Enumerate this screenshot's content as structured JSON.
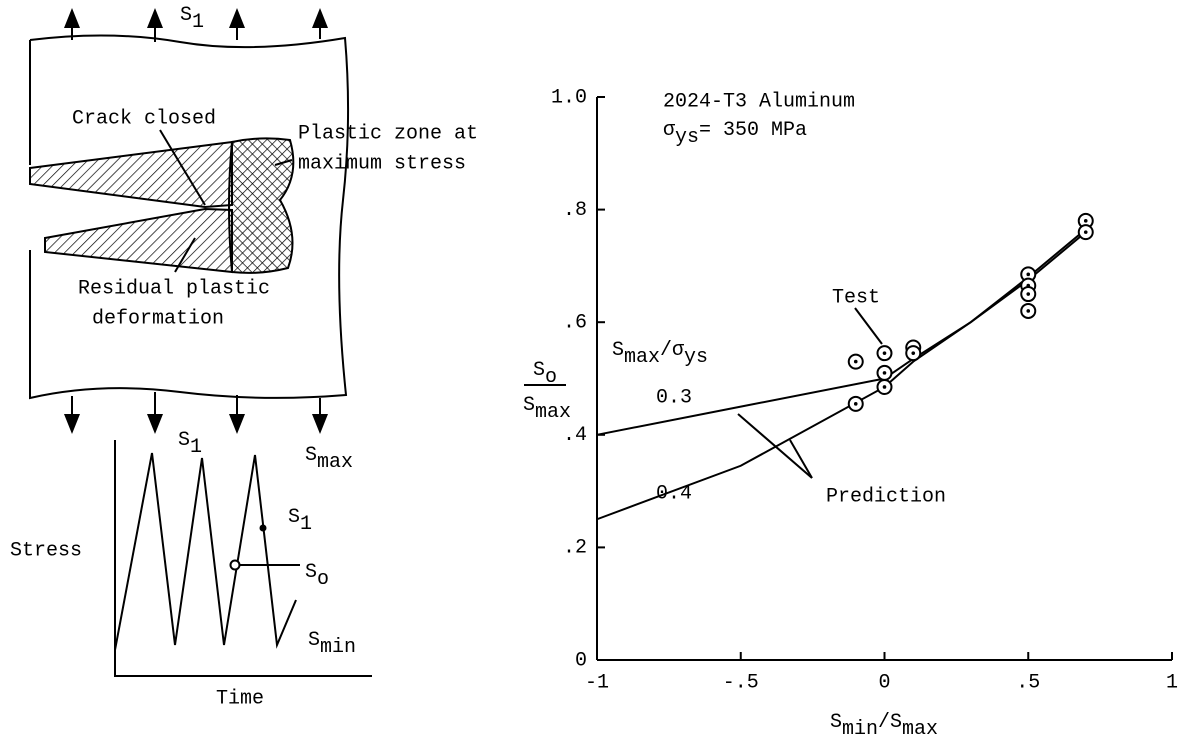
{
  "diagram": {
    "top_load": [
      "S",
      "1"
    ],
    "bottom_load": [
      "S",
      "1"
    ],
    "crack_closed": "Crack closed",
    "plastic_zone": [
      "Plastic zone at",
      "maximum stress"
    ],
    "residual": [
      "Residual plastic",
      "deformation"
    ],
    "stress_axis": "Stress",
    "time_axis": "Time",
    "s_max": [
      "S",
      "max"
    ],
    "s_1": [
      "S",
      "1"
    ],
    "s_o": [
      "S",
      "o"
    ],
    "s_min": [
      "S",
      "min"
    ]
  },
  "chart_data": {
    "type": "line",
    "title": "2024-T3 Aluminum",
    "subtitle": [
      "σ",
      "ys",
      "= 350 MPa"
    ],
    "xlabel": [
      "S",
      "min",
      "/S",
      "max"
    ],
    "ylabel": {
      "top": [
        "S",
        "o"
      ],
      "bottom": [
        "S",
        "max"
      ]
    },
    "legend_title": [
      "S",
      "max",
      "/σ",
      "ys"
    ],
    "annotation": "Prediction",
    "x": [
      -1,
      -0.5,
      0,
      0.1,
      0.3,
      0.5,
      0.7
    ],
    "series": [
      {
        "name": "0.3",
        "color": "#000000",
        "values": [
          0.4,
          0.45,
          0.5,
          0.535,
          0.6,
          0.68,
          0.765
        ]
      },
      {
        "name": "0.4",
        "color": "#000000",
        "values": [
          0.25,
          0.345,
          0.485,
          0.53,
          0.6,
          0.675,
          0.76
        ]
      }
    ],
    "test": {
      "name": "Test",
      "color": "#000000",
      "x": [
        -0.1,
        -0.1,
        0,
        0,
        0,
        0.1,
        0.1,
        0.5,
        0.5,
        0.5,
        0.5,
        0.7,
        0.7
      ],
      "y": [
        0.53,
        0.455,
        0.545,
        0.51,
        0.485,
        0.555,
        0.545,
        0.685,
        0.665,
        0.65,
        0.62,
        0.78,
        0.76
      ]
    },
    "xlim": [
      -1,
      1
    ],
    "xticks": [
      -1,
      {
        "value": -0.5,
        "label": "-.5"
      },
      0,
      {
        "value": 0.5,
        "label": ".5"
      },
      1
    ],
    "ylim": [
      0,
      1
    ],
    "yticks": [
      0,
      {
        "value": 0.2,
        "label": ".2"
      },
      {
        "value": 0.4,
        "label": ".4"
      },
      {
        "value": 0.6,
        "label": ".6"
      },
      {
        "value": 0.8,
        "label": ".8"
      },
      {
        "value": 1,
        "label": "1.0"
      }
    ]
  }
}
